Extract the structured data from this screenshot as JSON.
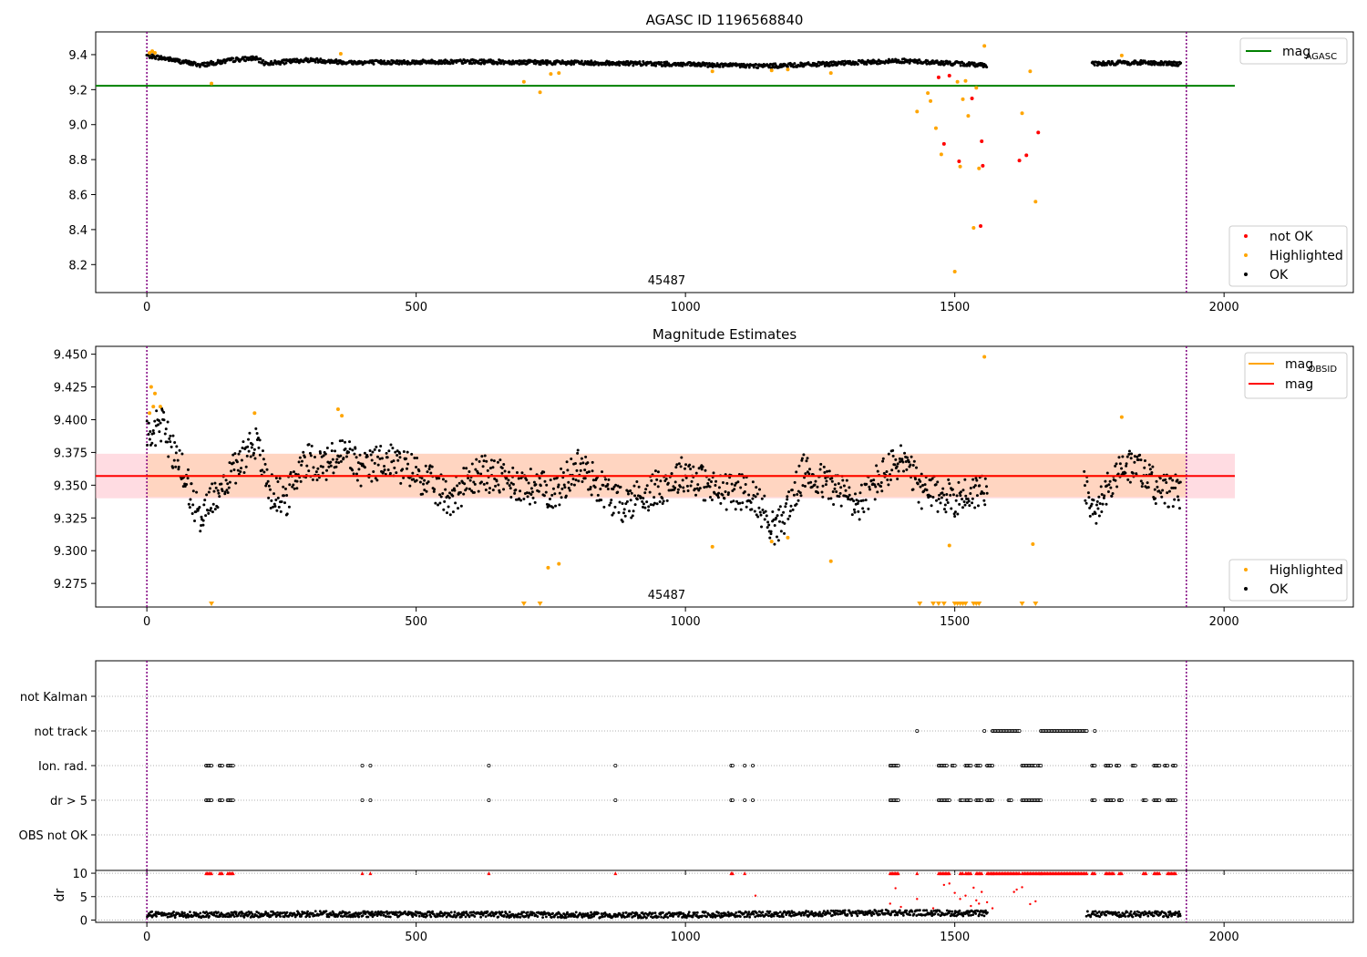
{
  "chart_data": [
    {
      "type": "scatter",
      "title": "AGASC ID 1196568840",
      "xlim": [
        -95,
        2240
      ],
      "ylim": [
        8.04,
        9.53
      ],
      "xticks": [
        0,
        500,
        1000,
        1500,
        2000
      ],
      "yticks": [
        8.2,
        8.4,
        8.6,
        8.8,
        9.0,
        9.2,
        9.4
      ],
      "ytick_labels": [
        "8.2",
        "8.4",
        "8.6",
        "8.8",
        "9.0",
        "9.2",
        "9.4"
      ],
      "vlines": [
        0,
        1930
      ],
      "obsid_label": "45487",
      "mag_agasc": 9.222,
      "mag_agasc_xrange": [
        -95,
        2020
      ],
      "legend_lines": [
        {
          "name": "mag",
          "sub": "AGASC",
          "color": "#008000"
        }
      ],
      "legend_points": [
        {
          "name": "not OK",
          "color": "#ff0000"
        },
        {
          "name": "Highlighted",
          "color": "#ffa500"
        },
        {
          "name": "OK",
          "color": "#000000"
        }
      ],
      "segments_ok": [
        [
          0,
          9.395
        ],
        [
          40,
          9.375
        ],
        [
          100,
          9.34
        ],
        [
          160,
          9.37
        ],
        [
          200,
          9.38
        ],
        [
          220,
          9.35
        ],
        [
          300,
          9.37
        ],
        [
          380,
          9.355
        ],
        [
          600,
          9.36
        ],
        [
          900,
          9.35
        ],
        [
          1150,
          9.335
        ],
        [
          1250,
          9.345
        ],
        [
          1400,
          9.365
        ],
        [
          1560,
          9.34
        ]
      ],
      "segments_ok2": [
        [
          1755,
          9.35
        ],
        [
          1850,
          9.355
        ],
        [
          1920,
          9.345
        ]
      ],
      "highlighted": [
        [
          5,
          9.41
        ],
        [
          10,
          9.42
        ],
        [
          15,
          9.41
        ],
        [
          120,
          9.235
        ],
        [
          360,
          9.405
        ],
        [
          700,
          9.245
        ],
        [
          730,
          9.185
        ],
        [
          750,
          9.29
        ],
        [
          765,
          9.295
        ],
        [
          1050,
          9.305
        ],
        [
          1160,
          9.31
        ],
        [
          1190,
          9.315
        ],
        [
          1270,
          9.295
        ],
        [
          1430,
          9.075
        ],
        [
          1450,
          9.18
        ],
        [
          1455,
          9.135
        ],
        [
          1465,
          8.98
        ],
        [
          1475,
          8.83
        ],
        [
          1500,
          8.16
        ],
        [
          1505,
          9.245
        ],
        [
          1510,
          8.76
        ],
        [
          1515,
          9.145
        ],
        [
          1520,
          9.25
        ],
        [
          1525,
          9.05
        ],
        [
          1535,
          8.41
        ],
        [
          1540,
          9.21
        ],
        [
          1545,
          8.75
        ],
        [
          1555,
          9.45
        ],
        [
          1625,
          9.065
        ],
        [
          1640,
          9.305
        ],
        [
          1650,
          8.56
        ],
        [
          1810,
          9.395
        ]
      ],
      "not_ok": [
        [
          1470,
          9.27
        ],
        [
          1480,
          8.89
        ],
        [
          1490,
          9.28
        ],
        [
          1508,
          8.79
        ],
        [
          1532,
          9.15
        ],
        [
          1548,
          8.42
        ],
        [
          1550,
          8.905
        ],
        [
          1552,
          8.765
        ],
        [
          1620,
          8.795
        ],
        [
          1633,
          8.825
        ],
        [
          1655,
          8.955
        ]
      ]
    },
    {
      "type": "scatter",
      "title": "Magnitude Estimates",
      "xlim": [
        -95,
        2240
      ],
      "ylim": [
        9.257,
        9.456
      ],
      "xticks": [
        0,
        500,
        1000,
        1500,
        2000
      ],
      "yticks": [
        9.275,
        9.3,
        9.325,
        9.35,
        9.375,
        9.4,
        9.425,
        9.45
      ],
      "ytick_labels": [
        "9.275",
        "9.300",
        "9.325",
        "9.350",
        "9.375",
        "9.400",
        "9.425",
        "9.450"
      ],
      "vlines": [
        0,
        1930
      ],
      "obsid_label": "45487",
      "mag": 9.357,
      "mag_band": [
        9.34,
        9.374
      ],
      "mag_band_xrange": [
        -95,
        2020
      ],
      "mag_obsid": 9.357,
      "mag_obsid_band": [
        9.341,
        9.374
      ],
      "mag_obsid_xrange": [
        0,
        1930
      ],
      "legend_lines": [
        {
          "name": "mag",
          "sub": "OBSID",
          "color": "#ffa500"
        },
        {
          "name": "mag",
          "sub": "",
          "color": "#ff0000"
        }
      ],
      "legend_points": [
        {
          "name": "Highlighted",
          "color": "#ffa500"
        },
        {
          "name": "OK",
          "color": "#000000"
        }
      ],
      "segments_ok": [
        [
          0,
          9.39
        ],
        [
          30,
          9.395
        ],
        [
          55,
          9.37
        ],
        [
          80,
          9.345
        ],
        [
          100,
          9.325
        ],
        [
          130,
          9.345
        ],
        [
          175,
          9.37
        ],
        [
          200,
          9.385
        ],
        [
          230,
          9.345
        ],
        [
          260,
          9.34
        ],
        [
          290,
          9.37
        ],
        [
          330,
          9.365
        ],
        [
          370,
          9.375
        ],
        [
          400,
          9.36
        ],
        [
          440,
          9.37
        ],
        [
          500,
          9.36
        ],
        [
          560,
          9.34
        ],
        [
          620,
          9.36
        ],
        [
          700,
          9.35
        ],
        [
          760,
          9.345
        ],
        [
          800,
          9.365
        ],
        [
          880,
          9.335
        ],
        [
          960,
          9.35
        ],
        [
          1000,
          9.36
        ],
        [
          1060,
          9.345
        ],
        [
          1120,
          9.345
        ],
        [
          1170,
          9.315
        ],
        [
          1220,
          9.36
        ],
        [
          1290,
          9.345
        ],
        [
          1320,
          9.335
        ],
        [
          1360,
          9.355
        ],
        [
          1400,
          9.37
        ],
        [
          1440,
          9.345
        ],
        [
          1500,
          9.34
        ],
        [
          1540,
          9.345
        ],
        [
          1560,
          9.35
        ]
      ],
      "segments_ok2": [
        [
          1740,
          9.35
        ],
        [
          1760,
          9.33
        ],
        [
          1800,
          9.36
        ],
        [
          1840,
          9.365
        ],
        [
          1880,
          9.345
        ],
        [
          1920,
          9.345
        ]
      ],
      "highlighted": [
        [
          5,
          9.405
        ],
        [
          8,
          9.425
        ],
        [
          12,
          9.41
        ],
        [
          15,
          9.42
        ],
        [
          25,
          9.41
        ],
        [
          200,
          9.405
        ],
        [
          355,
          9.408
        ],
        [
          362,
          9.403
        ],
        [
          745,
          9.287
        ],
        [
          765,
          9.29
        ],
        [
          1050,
          9.303
        ],
        [
          1160,
          9.307
        ],
        [
          1190,
          9.31
        ],
        [
          1270,
          9.292
        ],
        [
          1490,
          9.304
        ],
        [
          1555,
          9.448
        ],
        [
          1645,
          9.305
        ],
        [
          1810,
          9.402
        ]
      ],
      "lower_markers": [
        120,
        700,
        730,
        1435,
        1460,
        1470,
        1480,
        1500,
        1505,
        1510,
        1515,
        1520,
        1535,
        1540,
        1545,
        1625,
        1650
      ]
    },
    {
      "type": "scatter",
      "title": "",
      "xlim": [
        -95,
        2240
      ],
      "xticks": [
        0,
        500,
        1000,
        1500,
        2000
      ],
      "vlines": [
        0,
        1930
      ],
      "categories": [
        "not Kalman",
        "not track",
        "Ion. rad.",
        "dr > 5",
        "OBS not OK"
      ],
      "flag_ranges": {
        "not track": [
          [
            1430,
            1432
          ],
          [
            1555,
            1557
          ],
          [
            1570,
            1620
          ],
          [
            1660,
            1745
          ],
          [
            1760,
            1762
          ]
        ],
        "Ion. rad.": [
          [
            110,
            120
          ],
          [
            135,
            140
          ],
          [
            150,
            160
          ],
          [
            400,
            402
          ],
          [
            415,
            417
          ],
          [
            635,
            637
          ],
          [
            870,
            872
          ],
          [
            1085,
            1088
          ],
          [
            1110,
            1112
          ],
          [
            1125,
            1127
          ],
          [
            1380,
            1395
          ],
          [
            1470,
            1485
          ],
          [
            1495,
            1500
          ],
          [
            1520,
            1530
          ],
          [
            1540,
            1548
          ],
          [
            1560,
            1570
          ],
          [
            1625,
            1650
          ],
          [
            1655,
            1660
          ],
          [
            1755,
            1760
          ],
          [
            1780,
            1790
          ],
          [
            1800,
            1805
          ],
          [
            1830,
            1835
          ],
          [
            1870,
            1880
          ],
          [
            1890,
            1895
          ],
          [
            1905,
            1910
          ]
        ],
        "dr > 5": [
          [
            110,
            120
          ],
          [
            135,
            140
          ],
          [
            150,
            160
          ],
          [
            400,
            402
          ],
          [
            415,
            417
          ],
          [
            635,
            637
          ],
          [
            870,
            872
          ],
          [
            1085,
            1088
          ],
          [
            1110,
            1112
          ],
          [
            1125,
            1127
          ],
          [
            1380,
            1395
          ],
          [
            1470,
            1490
          ],
          [
            1510,
            1515
          ],
          [
            1520,
            1530
          ],
          [
            1540,
            1550
          ],
          [
            1560,
            1570
          ],
          [
            1600,
            1605
          ],
          [
            1625,
            1660
          ],
          [
            1755,
            1760
          ],
          [
            1780,
            1795
          ],
          [
            1805,
            1810
          ],
          [
            1850,
            1855
          ],
          [
            1870,
            1880
          ],
          [
            1895,
            1910
          ]
        ]
      }
    },
    {
      "type": "scatter",
      "ylabel": "dr",
      "xlim": [
        -95,
        2240
      ],
      "ylim": [
        -0.5,
        10.6
      ],
      "xticks": [
        0,
        500,
        1000,
        1500,
        2000
      ],
      "xtick_labels": [
        "0",
        "500",
        "1000",
        "1500",
        "2000"
      ],
      "yticks": [
        0,
        5,
        10
      ],
      "ytick_labels": [
        "0",
        "5",
        "10"
      ],
      "vlines": [
        0,
        1930
      ],
      "dr_segments": [
        [
          0,
          1.2
        ],
        [
          100,
          1.1
        ],
        [
          300,
          1.3
        ],
        [
          600,
          1.2
        ],
        [
          900,
          1.0
        ],
        [
          1200,
          1.3
        ],
        [
          1380,
          1.6
        ],
        [
          1560,
          1.4
        ]
      ],
      "dr_segments2": [
        [
          1745,
          1.3
        ],
        [
          1920,
          1.2
        ]
      ],
      "dr_high": [
        [
          1380,
          3.5
        ],
        [
          1390,
          6.8
        ],
        [
          1400,
          2.8
        ],
        [
          1430,
          4.5
        ],
        [
          1460,
          2.5
        ],
        [
          1480,
          7.5
        ],
        [
          1490,
          7.8
        ],
        [
          1500,
          5.8
        ],
        [
          1510,
          4.5
        ],
        [
          1520,
          5.2
        ],
        [
          1530,
          3.0
        ],
        [
          1535,
          6.9
        ],
        [
          1540,
          4.2
        ],
        [
          1545,
          3.5
        ],
        [
          1550,
          6.0
        ],
        [
          1560,
          3.8
        ],
        [
          1570,
          2.5
        ],
        [
          1610,
          6.0
        ],
        [
          1615,
          6.5
        ],
        [
          1625,
          7.0
        ],
        [
          1640,
          3.4
        ],
        [
          1650,
          4.0
        ],
        [
          1130,
          5.2
        ]
      ],
      "capped_ranges": [
        [
          110,
          120
        ],
        [
          135,
          140
        ],
        [
          150,
          160
        ],
        [
          400,
          402
        ],
        [
          415,
          417
        ],
        [
          635,
          637
        ],
        [
          870,
          872
        ],
        [
          1085,
          1088
        ],
        [
          1110,
          1112
        ],
        [
          1380,
          1395
        ],
        [
          1430,
          1432
        ],
        [
          1470,
          1490
        ],
        [
          1510,
          1515
        ],
        [
          1520,
          1530
        ],
        [
          1540,
          1550
        ],
        [
          1560,
          1570
        ],
        [
          1570,
          1620
        ],
        [
          1625,
          1660
        ],
        [
          1660,
          1745
        ],
        [
          1755,
          1762
        ],
        [
          1780,
          1795
        ],
        [
          1805,
          1810
        ],
        [
          1850,
          1855
        ],
        [
          1870,
          1880
        ],
        [
          1895,
          1910
        ]
      ]
    }
  ]
}
